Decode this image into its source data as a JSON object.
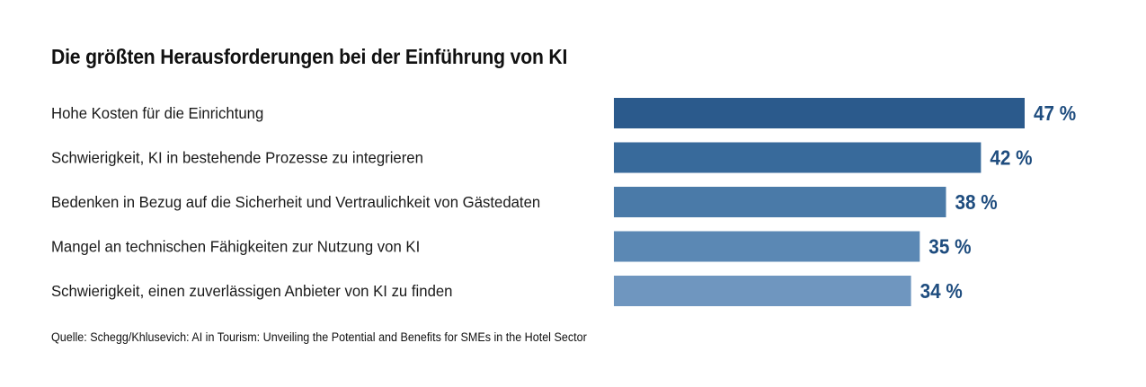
{
  "title": "Die größten Herausforderungen bei der Einführung von KI",
  "source": "Quelle: Schegg/Khlusevich: AI in Tourism: Unveiling the Potential and Benefits for SMEs in the Hotel Sector",
  "colors": {
    "bars": [
      "#2b5a8c",
      "#386a9b",
      "#4a7aa8",
      "#5b88b4",
      "#6f96bf"
    ],
    "value_text": "#1f4d7f"
  },
  "chart_data": {
    "type": "bar",
    "orientation": "horizontal",
    "title": "Die größten Herausforderungen bei der Einführung von KI",
    "categories": [
      "Hohe Kosten für die Einrichtung",
      "Schwierigkeit, KI in bestehende Prozesse zu integrieren",
      "Bedenken in Bezug auf die Sicherheit und Vertraulichkeit von Gästedaten",
      "Mangel an technischen Fähigkeiten zur Nutzung von KI",
      "Schwierigkeit, einen zuverlässigen Anbieter von KI zu finden"
    ],
    "values": [
      47,
      42,
      38,
      35,
      34
    ],
    "value_labels": [
      "47 %",
      "42 %",
      "38 %",
      "35 %",
      "34 %"
    ],
    "xlim": [
      0,
      47
    ],
    "grid": false,
    "legend": "none"
  }
}
